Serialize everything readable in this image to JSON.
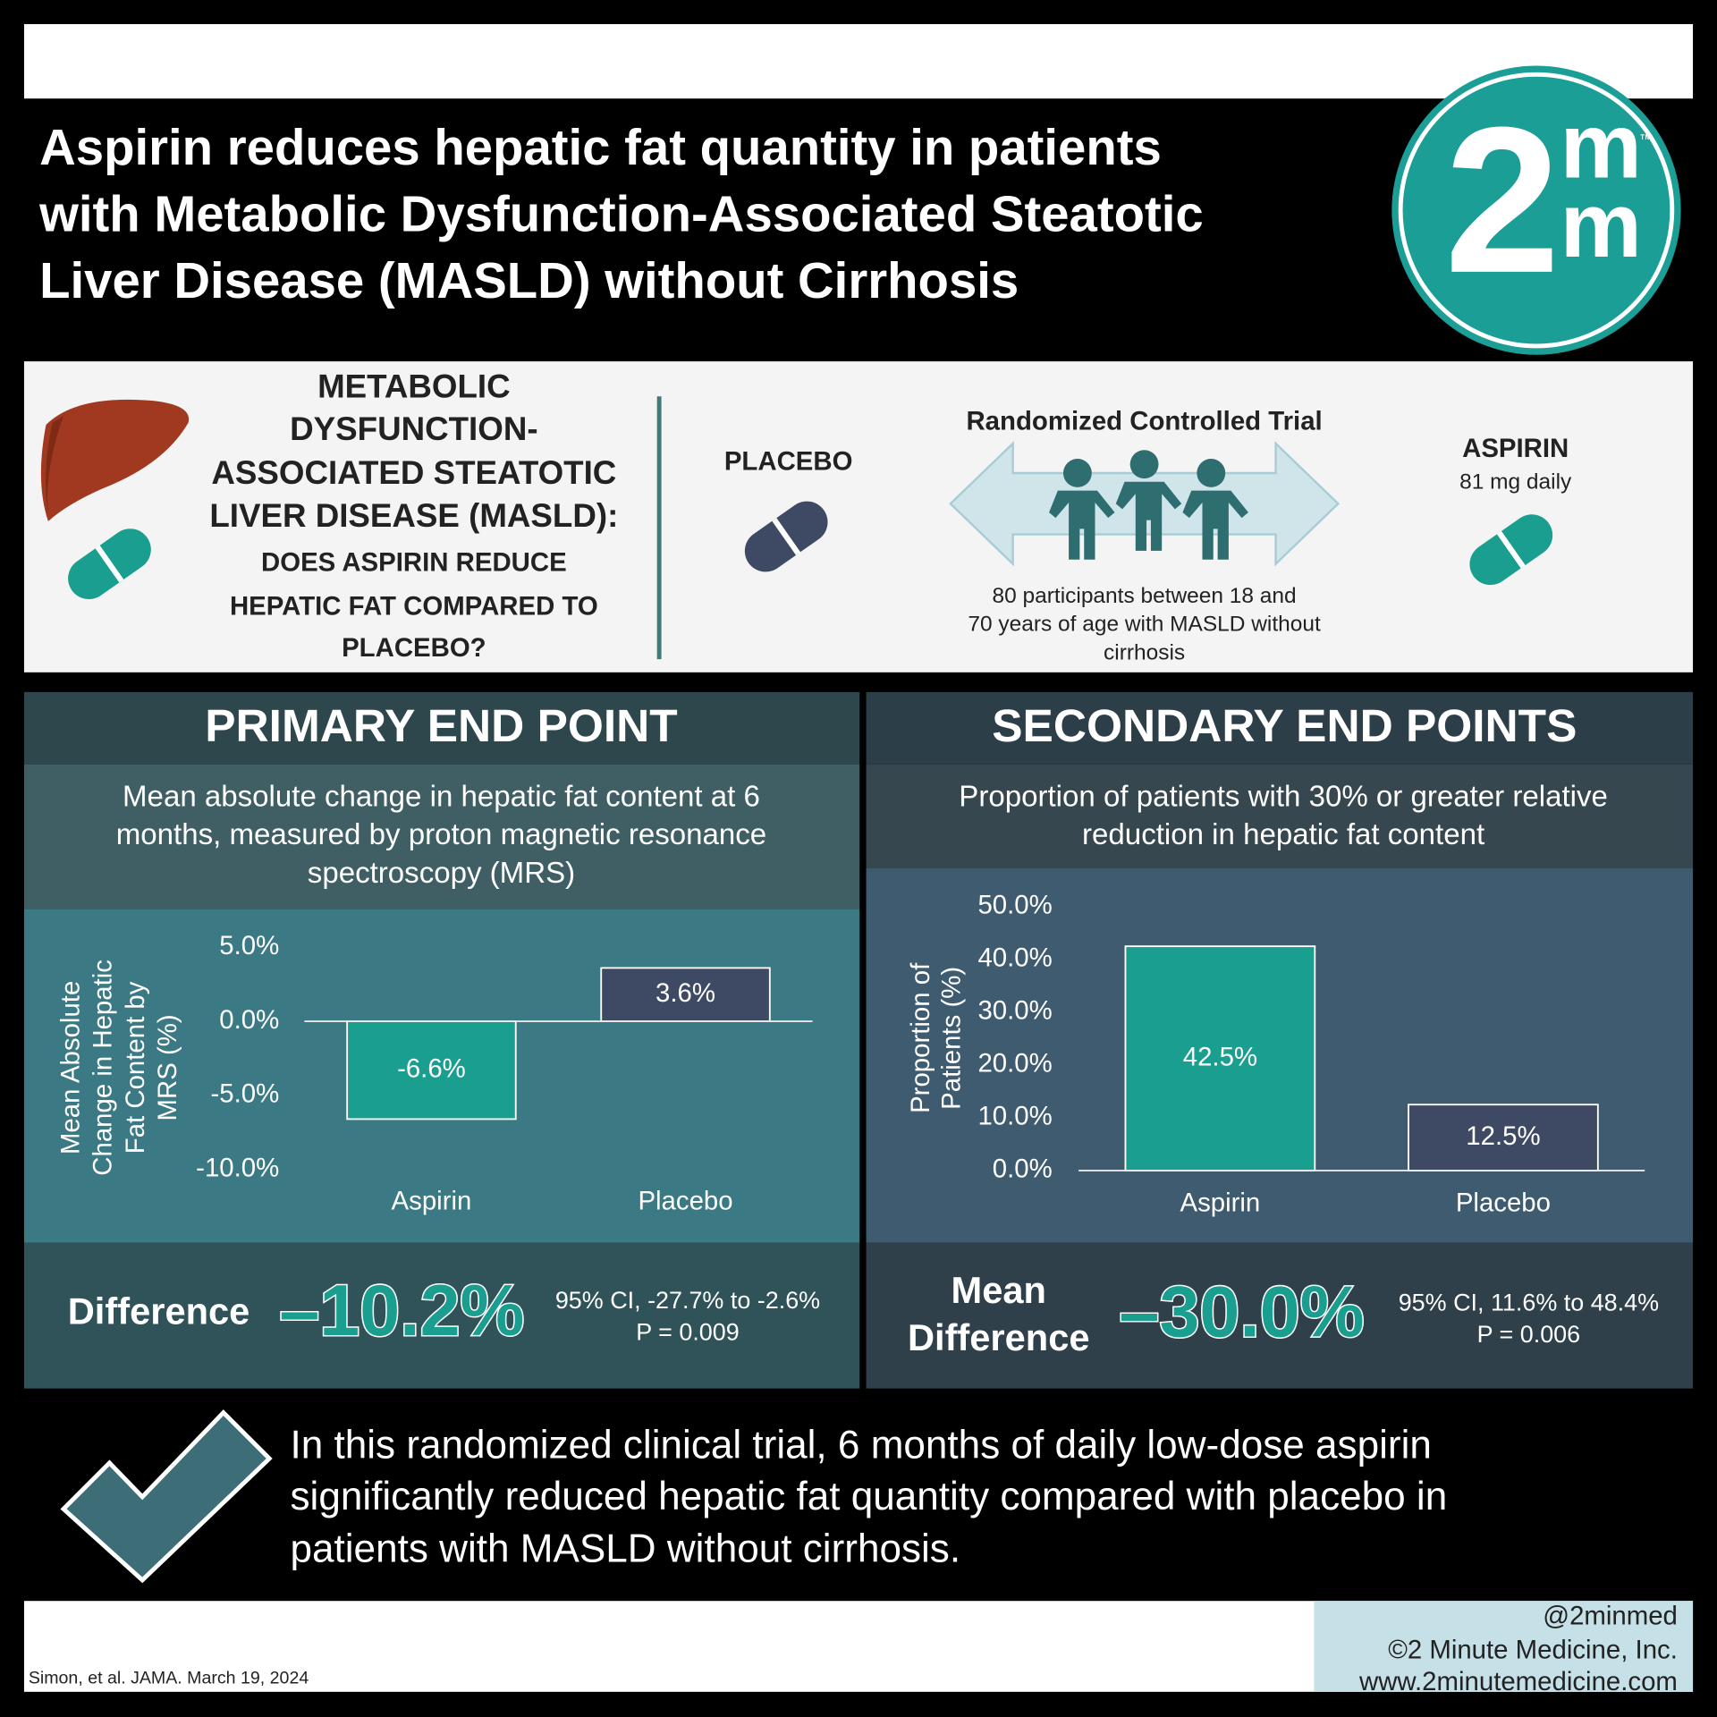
{
  "header": {
    "title": [
      "Aspirin reduces hepatic fat quantity in patients",
      "with Metabolic Dysfunction-Associated Steatotic",
      "Liver Disease (MASLD) without Cirrhosis"
    ]
  },
  "logo": {
    "number": "2",
    "top": "m",
    "bottom": "m",
    "trademark": "™"
  },
  "question": {
    "heading": [
      "METABOLIC",
      "DYSFUNCTION-",
      "ASSOCIATED STEATOTIC",
      "LIVER DISEASE (MASLD):"
    ],
    "text": [
      "DOES ASPIRIN REDUCE",
      "HEPATIC FAT COMPARED TO",
      "PLACEBO?"
    ]
  },
  "design": {
    "placebo": "PLACEBO",
    "trial": "Randomized Controlled Trial",
    "participants": [
      "80 participants between 18 and",
      "70 years of age with MASLD without",
      "cirrhosis"
    ],
    "aspirin": "ASPIRIN",
    "dose": "81 mg daily"
  },
  "primary": {
    "heading": "PRIMARY END POINT",
    "description": [
      "Mean absolute change in hepatic fat content at 6",
      "months, measured by proton magnetic resonance",
      "spectroscopy (MRS)"
    ],
    "difference_label": [
      "Difference"
    ],
    "difference": "–10.2%",
    "ci": "95% CI, -27.7% to -2.6%",
    "p": "P = 0.009"
  },
  "secondary": {
    "heading": "SECONDARY END POINTS",
    "description": [
      "Proportion of patients with 30% or greater relative",
      "reduction in hepatic fat content"
    ],
    "difference_label": [
      "Mean",
      "Difference"
    ],
    "difference": "–30.0%",
    "ci": "95% CI, 11.6% to 48.4%",
    "p": "P = 0.006"
  },
  "chart_data": [
    {
      "type": "bar",
      "y_label": "Mean Absolute Change in Hepatic Fat Content by MRS (%)",
      "categories": [
        "Aspirin",
        "Placebo"
      ],
      "values": [
        -6.6,
        3.6
      ],
      "value_labels": [
        "-6.6%",
        "3.6%"
      ],
      "colors": [
        "#1a9e8f",
        "#3e4a63"
      ],
      "ylim": [
        -10,
        5
      ],
      "yticks": [
        {
          "value": -10,
          "label": "-10.0%"
        },
        {
          "value": -5,
          "label": "-5.0%"
        },
        {
          "value": 0,
          "label": "0.0%"
        },
        {
          "value": 5,
          "label": "5.0%"
        }
      ]
    },
    {
      "type": "bar",
      "y_label": "Proportion of Patients (%)",
      "categories": [
        "Aspirin",
        "Placebo"
      ],
      "values": [
        42.5,
        12.5
      ],
      "value_labels": [
        "42.5%",
        "12.5%"
      ],
      "colors": [
        "#1a9e8f",
        "#3e4a63"
      ],
      "ylim": [
        0,
        50
      ],
      "yticks": [
        {
          "value": 0,
          "label": "0.0%"
        },
        {
          "value": 10,
          "label": "10.0%"
        },
        {
          "value": 20,
          "label": "20.0%"
        },
        {
          "value": 30,
          "label": "30.0%"
        },
        {
          "value": 40,
          "label": "40.0%"
        },
        {
          "value": 50,
          "label": "50.0%"
        }
      ]
    }
  ],
  "conclusion": [
    "In this randomized clinical trial, 6 months of daily low-dose aspirin",
    "significantly reduced hepatic fat quantity compared with placebo in",
    "patients with MASLD without cirrhosis."
  ],
  "footer": {
    "handle": "@2minmed",
    "copyright": "©2 Minute Medicine, Inc.",
    "website": "www.2minutemedicine.com",
    "citation": "Simon, et al. JAMA. March 19, 2024"
  }
}
